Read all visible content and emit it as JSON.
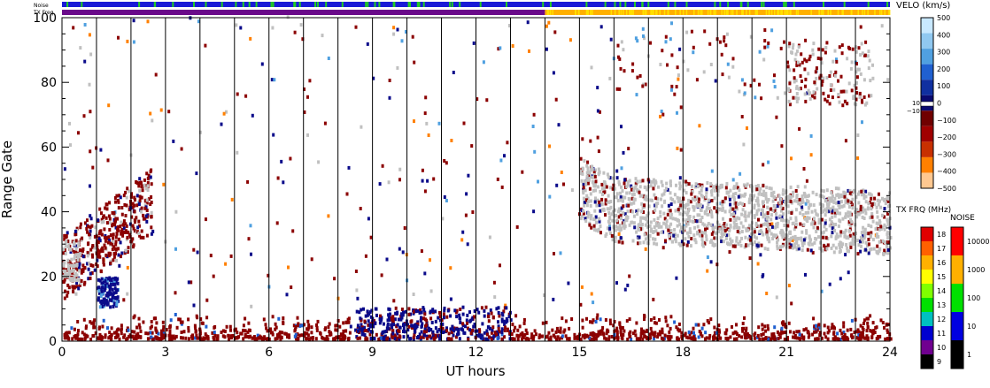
{
  "status_bars": {
    "noise_label": "Noise",
    "txfreq_label": "TX Freq",
    "noise_colors": [
      "#1a1ad6",
      "#22cc22"
    ],
    "txfreq_segments": [
      {
        "from": 0,
        "to": 14,
        "color": "#6a0a8a"
      },
      {
        "from": 14,
        "to": 24,
        "color": "#ffb000"
      }
    ]
  },
  "chart_data": {
    "type": "heatmap",
    "xlabel": "UT hours",
    "ylabel": "Range Gate",
    "xlim": [
      0,
      24
    ],
    "ylim": [
      0,
      100
    ],
    "x_ticks": [
      0,
      3,
      6,
      9,
      12,
      15,
      18,
      21,
      24
    ],
    "y_ticks": [
      0,
      20,
      40,
      60,
      80,
      100
    ],
    "hour_lines": [
      1,
      2,
      3,
      4,
      5,
      6,
      7,
      8,
      9,
      10,
      11,
      12,
      13,
      14,
      15,
      16,
      17,
      18,
      19,
      20,
      21,
      22,
      23
    ],
    "ground_scatter_color": "#c0c0c0",
    "features": [
      {
        "name": "near-range scatter",
        "x": [
          0,
          24
        ],
        "y": [
          0,
          8
        ],
        "color": "#8b0000"
      },
      {
        "name": "near-range positive velocity",
        "x": [
          8.5,
          13
        ],
        "y": [
          0,
          10
        ],
        "color": "#0a0a8a"
      },
      {
        "name": "early negative band",
        "x": [
          0,
          2.5
        ],
        "y": [
          20,
          55
        ],
        "color": "#8b0000"
      },
      {
        "name": "positive velocity patch",
        "x": [
          1,
          1.6
        ],
        "y": [
          10,
          19
        ],
        "color": "#0a0a8a"
      },
      {
        "name": "ground scatter band",
        "x": [
          15,
          24
        ],
        "y": [
          27,
          58
        ],
        "color": "#c0c0c0"
      },
      {
        "name": "far-range scatter",
        "x": [
          21,
          23.5
        ],
        "y": [
          72,
          92
        ],
        "color": "#8b0000"
      }
    ]
  },
  "velocity_scale": {
    "title": "VELO (km/s)",
    "ticks": [
      "500",
      "400",
      "300",
      "200",
      "100",
      "0",
      "−100",
      "−200",
      "−300",
      "−400",
      "−500"
    ],
    "side_labels": [
      "10",
      "−10"
    ],
    "colors": [
      "#c8e8ff",
      "#90c8f0",
      "#50a0e0",
      "#2060d0",
      "#1030a0",
      "#0a0a70",
      "#700000",
      "#a00000",
      "#c83000",
      "#ff8000",
      "#ffc890"
    ]
  },
  "txfreq_scale": {
    "title": "TX FRQ (MHz)",
    "ticks": [
      "18",
      "17",
      "16",
      "15",
      "14",
      "13",
      "12",
      "11",
      "10",
      "9"
    ],
    "colors": [
      "#e00000",
      "#ff6000",
      "#ffb000",
      "#ffff00",
      "#80ff00",
      "#00e000",
      "#00c0c0",
      "#0000d0",
      "#700090",
      "#000000"
    ]
  },
  "noise_scale": {
    "title": "NOISE",
    "ticks": [
      "10000",
      "1000",
      "100",
      "10",
      "1"
    ],
    "colors": [
      "#ff0000",
      "#ffb000",
      "#00e000",
      "#0000e0",
      "#000000"
    ]
  }
}
